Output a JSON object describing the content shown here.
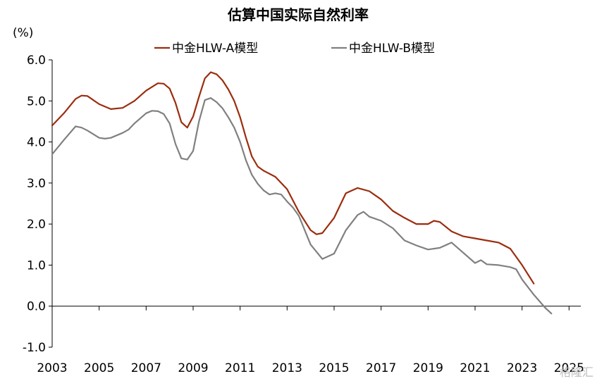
{
  "chart_data": {
    "type": "line",
    "title": "估算中国实际自然利率",
    "ylabel": "(%)",
    "ylim": [
      -1.0,
      6.0
    ],
    "yticks": [
      "6.0",
      "5.0",
      "4.0",
      "3.0",
      "2.0",
      "1.0",
      "0.0",
      "-1.0"
    ],
    "xlim": [
      2003.0,
      2025.5
    ],
    "xticks": [
      "2003",
      "2005",
      "2007",
      "2009",
      "2011",
      "2013",
      "2015",
      "2017",
      "2019",
      "2021",
      "2023",
      "2025"
    ],
    "grid": false,
    "legend_position": "top-center",
    "series": [
      {
        "name": "中金HLW-A模型",
        "color": "#9b2d0e",
        "points": [
          [
            2003.0,
            4.4
          ],
          [
            2003.5,
            4.7
          ],
          [
            2004.0,
            5.05
          ],
          [
            2004.25,
            5.13
          ],
          [
            2004.5,
            5.12
          ],
          [
            2005.0,
            4.92
          ],
          [
            2005.5,
            4.8
          ],
          [
            2006.0,
            4.83
          ],
          [
            2006.5,
            5.0
          ],
          [
            2007.0,
            5.25
          ],
          [
            2007.5,
            5.43
          ],
          [
            2007.75,
            5.42
          ],
          [
            2008.0,
            5.3
          ],
          [
            2008.25,
            4.95
          ],
          [
            2008.5,
            4.48
          ],
          [
            2008.75,
            4.35
          ],
          [
            2009.0,
            4.62
          ],
          [
            2009.25,
            5.1
          ],
          [
            2009.5,
            5.55
          ],
          [
            2009.75,
            5.7
          ],
          [
            2010.0,
            5.65
          ],
          [
            2010.25,
            5.5
          ],
          [
            2010.5,
            5.28
          ],
          [
            2010.75,
            5.0
          ],
          [
            2011.0,
            4.6
          ],
          [
            2011.25,
            4.1
          ],
          [
            2011.5,
            3.65
          ],
          [
            2011.75,
            3.4
          ],
          [
            2012.0,
            3.3
          ],
          [
            2012.5,
            3.15
          ],
          [
            2013.0,
            2.85
          ],
          [
            2013.5,
            2.3
          ],
          [
            2014.0,
            1.85
          ],
          [
            2014.25,
            1.75
          ],
          [
            2014.5,
            1.78
          ],
          [
            2015.0,
            2.15
          ],
          [
            2015.5,
            2.75
          ],
          [
            2016.0,
            2.88
          ],
          [
            2016.5,
            2.8
          ],
          [
            2017.0,
            2.6
          ],
          [
            2017.5,
            2.32
          ],
          [
            2018.0,
            2.15
          ],
          [
            2018.5,
            2.0
          ],
          [
            2019.0,
            2.0
          ],
          [
            2019.25,
            2.08
          ],
          [
            2019.5,
            2.05
          ],
          [
            2020.0,
            1.82
          ],
          [
            2020.5,
            1.7
          ],
          [
            2021.0,
            1.65
          ],
          [
            2021.5,
            1.6
          ],
          [
            2022.0,
            1.55
          ],
          [
            2022.5,
            1.4
          ],
          [
            2023.0,
            1.0
          ],
          [
            2023.5,
            0.55
          ]
        ]
      },
      {
        "name": "中金HLW-B模型",
        "color": "#808080",
        "points": [
          [
            2003.0,
            3.7
          ],
          [
            2003.5,
            4.05
          ],
          [
            2004.0,
            4.38
          ],
          [
            2004.25,
            4.35
          ],
          [
            2004.5,
            4.28
          ],
          [
            2005.0,
            4.1
          ],
          [
            2005.25,
            4.08
          ],
          [
            2005.5,
            4.1
          ],
          [
            2006.0,
            4.22
          ],
          [
            2006.25,
            4.3
          ],
          [
            2006.5,
            4.45
          ],
          [
            2007.0,
            4.7
          ],
          [
            2007.25,
            4.76
          ],
          [
            2007.5,
            4.75
          ],
          [
            2007.75,
            4.68
          ],
          [
            2008.0,
            4.45
          ],
          [
            2008.25,
            3.95
          ],
          [
            2008.5,
            3.6
          ],
          [
            2008.75,
            3.57
          ],
          [
            2009.0,
            3.78
          ],
          [
            2009.25,
            4.5
          ],
          [
            2009.5,
            5.02
          ],
          [
            2009.75,
            5.07
          ],
          [
            2010.0,
            4.97
          ],
          [
            2010.25,
            4.82
          ],
          [
            2010.5,
            4.6
          ],
          [
            2010.75,
            4.35
          ],
          [
            2011.0,
            4.0
          ],
          [
            2011.25,
            3.55
          ],
          [
            2011.5,
            3.2
          ],
          [
            2011.75,
            2.98
          ],
          [
            2012.0,
            2.82
          ],
          [
            2012.25,
            2.72
          ],
          [
            2012.5,
            2.75
          ],
          [
            2012.75,
            2.72
          ],
          [
            2013.0,
            2.55
          ],
          [
            2013.25,
            2.4
          ],
          [
            2013.5,
            2.2
          ],
          [
            2014.0,
            1.5
          ],
          [
            2014.5,
            1.15
          ],
          [
            2015.0,
            1.28
          ],
          [
            2015.5,
            1.85
          ],
          [
            2016.0,
            2.22
          ],
          [
            2016.25,
            2.3
          ],
          [
            2016.5,
            2.18
          ],
          [
            2017.0,
            2.08
          ],
          [
            2017.5,
            1.9
          ],
          [
            2018.0,
            1.6
          ],
          [
            2018.5,
            1.48
          ],
          [
            2019.0,
            1.38
          ],
          [
            2019.5,
            1.42
          ],
          [
            2020.0,
            1.55
          ],
          [
            2020.5,
            1.3
          ],
          [
            2021.0,
            1.05
          ],
          [
            2021.25,
            1.12
          ],
          [
            2021.5,
            1.02
          ],
          [
            2022.0,
            1.0
          ],
          [
            2022.5,
            0.95
          ],
          [
            2022.75,
            0.9
          ],
          [
            2023.0,
            0.65
          ],
          [
            2023.5,
            0.28
          ],
          [
            2024.0,
            -0.05
          ],
          [
            2024.25,
            -0.18
          ]
        ]
      }
    ]
  },
  "watermark": "格隆汇"
}
